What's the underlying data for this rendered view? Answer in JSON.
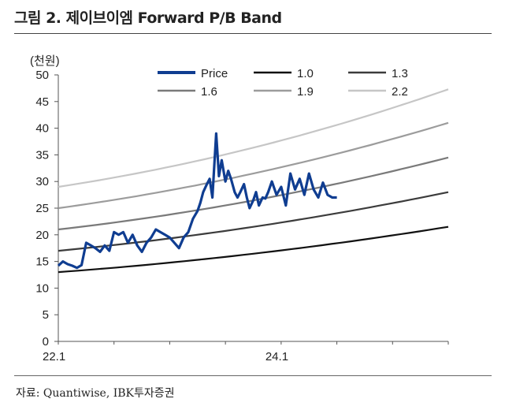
{
  "figure": {
    "title": "그림 2. 제이브이엠 Forward P/B Band",
    "source": "자료: Quantiwise, IBK투자증권"
  },
  "chart_data": {
    "type": "line",
    "ylabel": "(천원)",
    "ylim": [
      0,
      50
    ],
    "y_ticks": [
      "0",
      "5",
      "10",
      "15",
      "20",
      "25",
      "30",
      "35",
      "40",
      "45",
      "50"
    ],
    "x_ticks": [
      {
        "label": "22.1",
        "month": 0
      },
      {
        "label": "24.1",
        "month": 24
      }
    ],
    "xlim_months": [
      0,
      42
    ],
    "legend_position": "top-right",
    "colors": {
      "price": "#0f3d91",
      "1.0": "#111111",
      "1.3": "#3c3c3c",
      "1.6": "#7a7a7a",
      "1.9": "#9c9c9c",
      "2.2": "#c6c6c6"
    },
    "series": [
      {
        "name": "Price",
        "key": "price",
        "x": [
          0,
          0.5,
          1,
          1.5,
          2,
          2.5,
          3,
          3.5,
          4,
          4.5,
          5,
          5.5,
          6,
          6.5,
          7,
          7.5,
          8,
          8.5,
          9,
          9.5,
          10,
          10.5,
          11,
          11.5,
          12,
          12.5,
          13,
          13.5,
          14,
          14.5,
          15,
          15.3,
          15.6,
          16,
          16.3,
          16.6,
          17,
          17.3,
          17.6,
          18,
          18.3,
          18.6,
          19,
          19.3,
          19.6,
          20,
          20.3,
          20.6,
          21,
          21.3,
          21.6,
          22,
          22.3,
          22.6,
          23,
          23.5,
          24,
          24.5,
          25,
          25.5,
          26,
          26.5,
          27,
          27.5,
          28,
          28.5,
          29,
          29.5,
          30
        ],
        "values": [
          14.2,
          15,
          14.5,
          14.2,
          13.8,
          14.3,
          18.5,
          18,
          17.5,
          16.8,
          18,
          17,
          20.5,
          20,
          20.5,
          18.5,
          20,
          18,
          16.8,
          18.5,
          19.5,
          21,
          20.5,
          20,
          19.5,
          18.5,
          17.5,
          19.5,
          20.5,
          23,
          24.5,
          26,
          28,
          29.5,
          30.5,
          27,
          39,
          31,
          34,
          30,
          32,
          30.5,
          28,
          27,
          28,
          29.5,
          27,
          25,
          26.5,
          28,
          25.5,
          27,
          26.8,
          28,
          30,
          27.5,
          29,
          25.5,
          31.5,
          28.5,
          30.5,
          27.5,
          31.5,
          28.5,
          27,
          29.8,
          27.5,
          27,
          27
        ]
      },
      {
        "name": "1.0",
        "key": "1.0",
        "x": [
          0,
          42
        ],
        "values": [
          13,
          21.5
        ],
        "curve": 0.8
      },
      {
        "name": "1.3",
        "key": "1.3",
        "x": [
          0,
          42
        ],
        "values": [
          17,
          28
        ],
        "curve": 1.0
      },
      {
        "name": "1.6",
        "key": "1.6",
        "x": [
          0,
          42
        ],
        "values": [
          21,
          34.5
        ],
        "curve": 1.3
      },
      {
        "name": "1.9",
        "key": "1.9",
        "x": [
          0,
          42
        ],
        "values": [
          25,
          41
        ],
        "curve": 1.5
      },
      {
        "name": "2.2",
        "key": "2.2",
        "x": [
          0,
          42
        ],
        "values": [
          29,
          47.3
        ],
        "curve": 1.8
      }
    ]
  }
}
